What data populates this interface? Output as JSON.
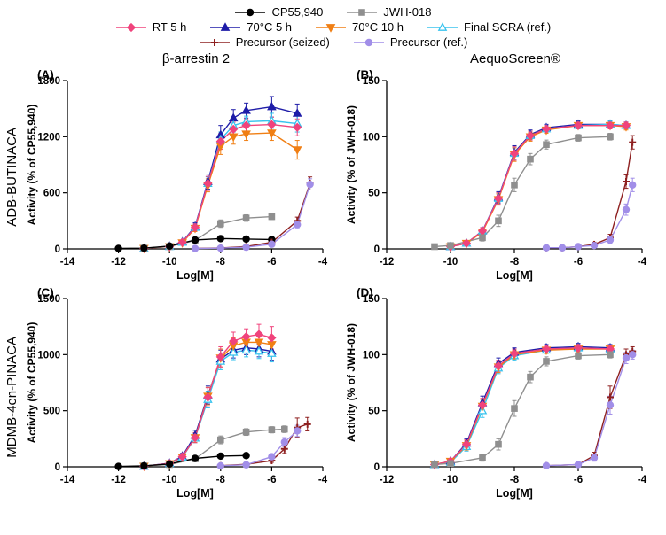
{
  "figure": {
    "background": "#ffffff",
    "legend_position": "top",
    "column_titles": [
      "β-arrestin 2",
      "AequoScreen®"
    ],
    "row_labels": [
      "ADB-BUTINACA",
      "MDMB-4en-PINACA"
    ]
  },
  "legend": {
    "rows": [
      [
        "CP55,940",
        "JWH-018"
      ],
      [
        "RT 5 h",
        "70°C 5 h",
        "70°C 10 h",
        "Final SCRA (ref.)"
      ],
      [
        "Precursor (seized)",
        "Precursor (ref.)"
      ]
    ]
  },
  "series_styles": {
    "CP55,940": {
      "color": "#000000",
      "marker": "circle",
      "open": false
    },
    "JWH-018": {
      "color": "#8f8f8f",
      "marker": "square",
      "open": false
    },
    "RT 5 h": {
      "color": "#f0437c",
      "marker": "diamond",
      "open": false
    },
    "70°C 5 h": {
      "color": "#1e1ca8",
      "marker": "triangle-up",
      "open": false
    },
    "70°C 10 h": {
      "color": "#f07f14",
      "marker": "triangle-down",
      "open": false
    },
    "Final SCRA (ref.)": {
      "color": "#38c3ee",
      "marker": "triangle-up",
      "open": true
    },
    "Precursor (seized)": {
      "color": "#8e2020",
      "marker": "plus",
      "open": false
    },
    "Precursor (ref.)": {
      "color": "#a18ee8",
      "marker": "circle",
      "open": false
    }
  },
  "chart_data": [
    {
      "panel_label": "(A)",
      "type": "line",
      "xlabel": "Log[M]",
      "ylabel": "Activity (% of CP55,940)",
      "xlim": [
        -14,
        -4
      ],
      "xticks": [
        -14,
        -12,
        -10,
        -8,
        -6,
        -4
      ],
      "ylim": [
        0,
        1800
      ],
      "yticks": [
        0,
        600,
        1200,
        1800
      ],
      "series": [
        {
          "name": "70°C 5 h",
          "x": [
            -11,
            -10,
            -9.5,
            -9,
            -8.5,
            -8,
            -7.5,
            -7,
            -6,
            -5
          ],
          "y": [
            5,
            28,
            75,
            240,
            720,
            1220,
            1400,
            1480,
            1520,
            1450
          ],
          "err": [
            4,
            10,
            20,
            40,
            80,
            100,
            90,
            80,
            110,
            100
          ]
        },
        {
          "name": "Final SCRA (ref.)",
          "x": [
            -11,
            -10,
            -9.5,
            -9,
            -8.5,
            -8,
            -7.5,
            -7,
            -6,
            -5
          ],
          "y": [
            5,
            25,
            70,
            230,
            700,
            1170,
            1320,
            1360,
            1370,
            1340
          ],
          "err": [
            4,
            10,
            18,
            35,
            70,
            80,
            70,
            60,
            80,
            90
          ]
        },
        {
          "name": "70°C 10 h",
          "x": [
            -11,
            -10,
            -9.5,
            -9,
            -8.5,
            -8,
            -7.5,
            -7,
            -6,
            -5
          ],
          "y": [
            5,
            24,
            65,
            220,
            680,
            1100,
            1200,
            1230,
            1240,
            1060
          ],
          "err": [
            4,
            9,
            18,
            35,
            70,
            90,
            80,
            70,
            80,
            100
          ]
        },
        {
          "name": "RT 5 h",
          "x": [
            -11,
            -10,
            -9.5,
            -9,
            -8.5,
            -8,
            -7.5,
            -7,
            -6,
            -5
          ],
          "y": [
            5,
            25,
            70,
            230,
            700,
            1150,
            1280,
            1320,
            1330,
            1300
          ],
          "err": [
            4,
            10,
            18,
            38,
            75,
            85,
            75,
            70,
            80,
            90
          ]
        },
        {
          "name": "JWH-018",
          "x": [
            -11,
            -10,
            -9,
            -8,
            -7,
            -6
          ],
          "y": [
            8,
            25,
            90,
            270,
            330,
            345
          ],
          "err": [
            4,
            8,
            25,
            40,
            35,
            30
          ]
        },
        {
          "name": "CP55,940",
          "x": [
            -12,
            -11,
            -10,
            -9,
            -8,
            -7,
            -6
          ],
          "y": [
            5,
            8,
            30,
            95,
            110,
            105,
            100
          ],
          "err": [
            3,
            4,
            10,
            15,
            15,
            12,
            10
          ]
        },
        {
          "name": "Precursor (seized)",
          "x": [
            -9,
            -8,
            -7,
            -6,
            -5,
            -4.5
          ],
          "y": [
            5,
            10,
            25,
            70,
            300,
            700
          ],
          "err": [
            3,
            4,
            8,
            15,
            40,
            70
          ]
        },
        {
          "name": "Precursor (ref.)",
          "x": [
            -9,
            -8,
            -7,
            -6,
            -5,
            -4.5
          ],
          "y": [
            4,
            8,
            18,
            50,
            260,
            690
          ],
          "err": [
            3,
            4,
            6,
            12,
            35,
            60
          ]
        }
      ]
    },
    {
      "panel_label": "(B)",
      "type": "line",
      "xlabel": "Log[M]",
      "ylabel": "Activity (% of JWH-018)",
      "xlim": [
        -12,
        -4
      ],
      "xticks": [
        -12,
        -10,
        -8,
        -6,
        -4
      ],
      "ylim": [
        0,
        150
      ],
      "yticks": [
        0,
        50,
        100,
        150
      ],
      "series": [
        {
          "name": "70°C 5 h",
          "x": [
            -10,
            -9.5,
            -9,
            -8.5,
            -8,
            -7.5,
            -7,
            -6,
            -5,
            -4.5
          ],
          "y": [
            2,
            5,
            16,
            46,
            86,
            102,
            108,
            111,
            111,
            110
          ],
          "err": [
            1,
            2,
            3,
            5,
            6,
            4,
            3,
            3,
            3,
            3
          ]
        },
        {
          "name": "Final SCRA (ref.)",
          "x": [
            -10,
            -9.5,
            -9,
            -8.5,
            -8,
            -7.5,
            -7,
            -6,
            -5,
            -4.5
          ],
          "y": [
            2,
            5,
            16,
            45,
            85,
            101,
            107,
            110,
            111,
            110
          ],
          "err": [
            1,
            2,
            3,
            5,
            6,
            4,
            3,
            3,
            3,
            3
          ]
        },
        {
          "name": "70°C 10 h",
          "x": [
            -10,
            -9.5,
            -9,
            -8.5,
            -8,
            -7.5,
            -7,
            -6,
            -5,
            -4.5
          ],
          "y": [
            2,
            5,
            15,
            44,
            84,
            100,
            106,
            110,
            110,
            109
          ],
          "err": [
            1,
            2,
            3,
            5,
            6,
            4,
            3,
            3,
            3,
            3
          ]
        },
        {
          "name": "RT 5 h",
          "x": [
            -10,
            -9.5,
            -9,
            -8.5,
            -8,
            -7.5,
            -7,
            -6,
            -5,
            -4.5
          ],
          "y": [
            2,
            5,
            16,
            45,
            85,
            101,
            107,
            110,
            110,
            110
          ],
          "err": [
            1,
            2,
            3,
            5,
            6,
            4,
            3,
            3,
            3,
            3
          ]
        },
        {
          "name": "JWH-018",
          "x": [
            -10.5,
            -10,
            -9,
            -8.5,
            -8,
            -7.5,
            -7,
            -6,
            -5
          ],
          "y": [
            2,
            3,
            10,
            25,
            57,
            80,
            93,
            99,
            100
          ],
          "err": [
            1,
            1,
            3,
            5,
            6,
            5,
            4,
            3,
            3
          ]
        },
        {
          "name": "Precursor (seized)",
          "x": [
            -7,
            -6.5,
            -6,
            -5.5,
            -5,
            -4.5,
            -4.3
          ],
          "y": [
            1,
            1,
            2,
            4,
            10,
            60,
            95
          ],
          "err": [
            1,
            1,
            1,
            2,
            3,
            6,
            6
          ]
        },
        {
          "name": "Precursor (ref.)",
          "x": [
            -7,
            -6.5,
            -6,
            -5.5,
            -5,
            -4.5,
            -4.3
          ],
          "y": [
            1,
            1,
            2,
            3,
            8,
            35,
            57
          ],
          "err": [
            1,
            1,
            1,
            2,
            3,
            5,
            6
          ]
        }
      ]
    },
    {
      "panel_label": "(C)",
      "type": "line",
      "xlabel": "Log[M]",
      "ylabel": "Activity (% of CP55,940)",
      "xlim": [
        -14,
        -4
      ],
      "xticks": [
        -14,
        -12,
        -10,
        -8,
        -6,
        -4
      ],
      "ylim": [
        0,
        1500
      ],
      "yticks": [
        0,
        500,
        1000,
        1500
      ],
      "series": [
        {
          "name": "70°C 5 h",
          "x": [
            -11,
            -10,
            -9.5,
            -9,
            -8.5,
            -8,
            -7.5,
            -7,
            -6.5,
            -6
          ],
          "y": [
            5,
            32,
            95,
            280,
            640,
            960,
            1040,
            1060,
            1050,
            1030
          ],
          "err": [
            4,
            10,
            25,
            45,
            80,
            80,
            70,
            60,
            70,
            80
          ]
        },
        {
          "name": "Final SCRA (ref.)",
          "x": [
            -11,
            -10,
            -9.5,
            -9,
            -8.5,
            -8,
            -7.5,
            -7,
            -6.5,
            -6
          ],
          "y": [
            5,
            28,
            85,
            255,
            600,
            940,
            1020,
            1040,
            1030,
            1010
          ],
          "err": [
            4,
            10,
            22,
            40,
            75,
            75,
            65,
            60,
            65,
            75
          ]
        },
        {
          "name": "70°C 10 h",
          "x": [
            -11,
            -10,
            -9.5,
            -9,
            -8.5,
            -8,
            -7.5,
            -7,
            -6.5,
            -6
          ],
          "y": [
            5,
            28,
            88,
            260,
            630,
            970,
            1080,
            1110,
            1110,
            1090
          ],
          "err": [
            4,
            10,
            22,
            42,
            78,
            80,
            70,
            65,
            70,
            80
          ]
        },
        {
          "name": "RT 5 h",
          "x": [
            -11,
            -10,
            -9.5,
            -9,
            -8.5,
            -8,
            -7.5,
            -7,
            -6.5,
            -6
          ],
          "y": [
            5,
            30,
            90,
            260,
            620,
            980,
            1120,
            1160,
            1180,
            1150
          ],
          "err": [
            4,
            10,
            25,
            45,
            85,
            90,
            80,
            70,
            90,
            100
          ]
        },
        {
          "name": "JWH-018",
          "x": [
            -11,
            -10,
            -9,
            -8,
            -7,
            -6,
            -5.5
          ],
          "y": [
            8,
            20,
            70,
            240,
            310,
            330,
            335
          ],
          "err": [
            4,
            8,
            20,
            35,
            30,
            28,
            30
          ]
        },
        {
          "name": "CP55,940",
          "x": [
            -12,
            -11,
            -10,
            -9,
            -8,
            -7
          ],
          "y": [
            3,
            8,
            25,
            75,
            95,
            100
          ],
          "err": [
            2,
            4,
            8,
            12,
            12,
            10
          ]
        },
        {
          "name": "Precursor (seized)",
          "x": [
            -8,
            -7,
            -6,
            -5.5,
            -5,
            -4.6
          ],
          "y": [
            10,
            22,
            55,
            160,
            350,
            380
          ],
          "err": [
            4,
            8,
            15,
            40,
            85,
            60
          ]
        },
        {
          "name": "Precursor (ref.)",
          "x": [
            -8,
            -7,
            -6,
            -5.5,
            -5
          ],
          "y": [
            8,
            18,
            90,
            220,
            320
          ],
          "err": [
            4,
            6,
            20,
            40,
            50
          ]
        }
      ]
    },
    {
      "panel_label": "(D)",
      "type": "line",
      "xlabel": "Log[M]",
      "ylabel": "Activity (% of JWH-018)",
      "xlim": [
        -12,
        -4
      ],
      "xticks": [
        -12,
        -10,
        -8,
        -6,
        -4
      ],
      "ylim": [
        0,
        150
      ],
      "yticks": [
        0,
        50,
        100,
        150
      ],
      "series": [
        {
          "name": "70°C 5 h",
          "x": [
            -10.5,
            -10,
            -9.5,
            -9,
            -8.5,
            -8,
            -7,
            -6,
            -5
          ],
          "y": [
            2,
            5,
            21,
            57,
            92,
            102,
            106,
            107,
            106
          ],
          "err": [
            1,
            2,
            4,
            6,
            5,
            4,
            3,
            3,
            3
          ]
        },
        {
          "name": "Final SCRA (ref.)",
          "x": [
            -10.5,
            -10,
            -9.5,
            -9,
            -8.5,
            -8,
            -7,
            -6,
            -5
          ],
          "y": [
            2,
            4,
            18,
            50,
            88,
            99,
            104,
            106,
            105
          ],
          "err": [
            1,
            2,
            4,
            6,
            5,
            4,
            3,
            3,
            3
          ]
        },
        {
          "name": "70°C 10 h",
          "x": [
            -10.5,
            -10,
            -9.5,
            -9,
            -8.5,
            -8,
            -7,
            -6,
            -5
          ],
          "y": [
            2,
            5,
            19,
            54,
            89,
            100,
            104,
            105,
            105
          ],
          "err": [
            1,
            2,
            4,
            6,
            5,
            4,
            3,
            3,
            3
          ]
        },
        {
          "name": "RT 5 h",
          "x": [
            -10.5,
            -10,
            -9.5,
            -9,
            -8.5,
            -8,
            -7,
            -6,
            -5
          ],
          "y": [
            2,
            5,
            20,
            55,
            90,
            101,
            105,
            106,
            105
          ],
          "err": [
            1,
            2,
            4,
            6,
            5,
            4,
            3,
            3,
            3
          ]
        },
        {
          "name": "JWH-018",
          "x": [
            -10.5,
            -10,
            -9,
            -8.5,
            -8,
            -7.5,
            -7,
            -6,
            -5
          ],
          "y": [
            2,
            3,
            8,
            20,
            52,
            80,
            94,
            99,
            100
          ],
          "err": [
            1,
            1,
            3,
            5,
            7,
            5,
            4,
            3,
            3
          ]
        },
        {
          "name": "Precursor (seized)",
          "x": [
            -7,
            -6,
            -5.5,
            -5,
            -4.5,
            -4.3
          ],
          "y": [
            1,
            2,
            10,
            62,
            100,
            103
          ],
          "err": [
            1,
            1,
            3,
            10,
            5,
            4
          ]
        },
        {
          "name": "Precursor (ref.)",
          "x": [
            -7,
            -6,
            -5.5,
            -5,
            -4.5,
            -4.3
          ],
          "y": [
            1,
            2,
            8,
            55,
            97,
            100
          ],
          "err": [
            1,
            1,
            3,
            8,
            5,
            4
          ]
        }
      ]
    }
  ]
}
